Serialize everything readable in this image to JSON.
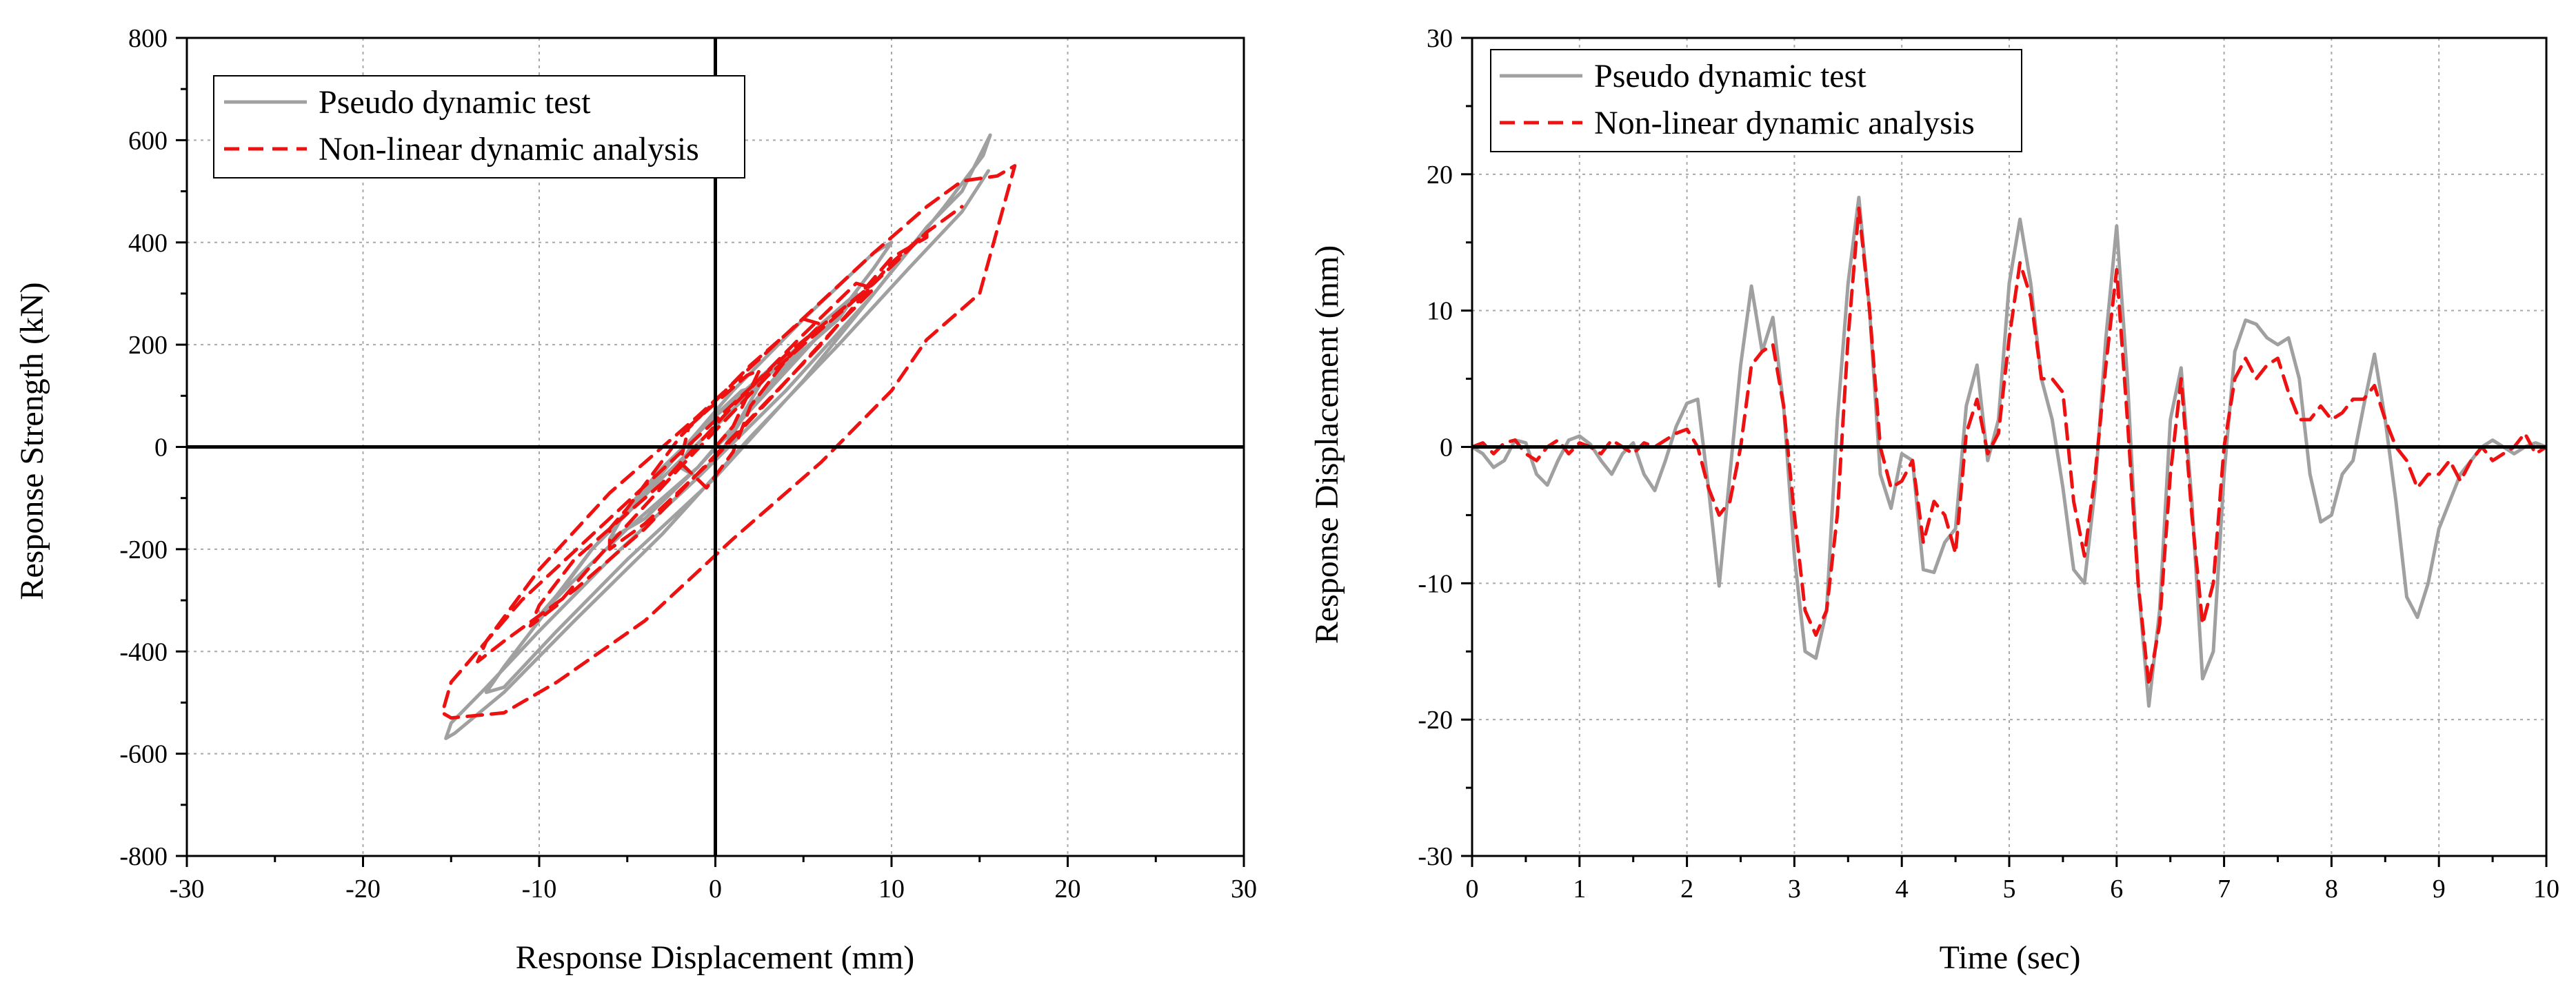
{
  "colors": {
    "test_series": "#a0a0a0",
    "analysis_series": "#ee1111",
    "axis": "#000000",
    "grid": "#a8a8a8"
  },
  "chart_data": [
    {
      "id": "hysteresis",
      "type": "line",
      "title": "",
      "xlabel": "Response Displacement (mm)",
      "ylabel": "Response Strength (kN)",
      "xlim": [
        -30,
        30
      ],
      "ylim": [
        -800,
        800
      ],
      "xticks": [
        -30,
        -20,
        -10,
        0,
        10,
        20,
        30
      ],
      "yticks": [
        -800,
        -600,
        -400,
        -200,
        0,
        200,
        400,
        600,
        800
      ],
      "xtick_labels": [
        "-30",
        "-20",
        "-10",
        "0",
        "10",
        "20",
        "30"
      ],
      "ytick_labels": [
        "-800",
        "-600",
        "-400",
        "-200",
        "0",
        "200",
        "400",
        "600",
        "800"
      ],
      "grid": true,
      "zero_lines": true,
      "legend_position": "top-left",
      "series": [
        {
          "name": "Pseudo dynamic test",
          "style": "solid",
          "color": "#a0a0a0",
          "x": [
            0,
            1,
            2.5,
            1.5,
            -1,
            -2,
            -1,
            0.5,
            2,
            4,
            5,
            3,
            0,
            -3,
            -5,
            -6,
            -4,
            -1,
            2,
            5,
            7,
            8,
            6,
            3,
            0,
            -3,
            -7,
            -9,
            -10,
            -8,
            -5,
            -1,
            3,
            7,
            9,
            10,
            9,
            5,
            1,
            -3,
            -7,
            -10,
            -12,
            -13,
            -12,
            -9,
            -5,
            0,
            5,
            9,
            12,
            14,
            15.6,
            15.2,
            13,
            9,
            4,
            -1,
            -6,
            -10,
            -13,
            -15,
            -15.3,
            -14.8,
            -12,
            -8,
            -3,
            2,
            7,
            11,
            14,
            15.5
          ],
          "y": [
            0,
            30,
            120,
            110,
            30,
            -40,
            -60,
            0,
            80,
            160,
            200,
            150,
            60,
            -40,
            -120,
            -180,
            -140,
            -40,
            80,
            190,
            250,
            300,
            240,
            140,
            40,
            -60,
            -200,
            -290,
            -330,
            -260,
            -160,
            -40,
            110,
            260,
            350,
            400,
            380,
            250,
            110,
            -50,
            -200,
            -340,
            -430,
            -480,
            -470,
            -360,
            -220,
            -60,
            130,
            300,
            430,
            500,
            610,
            570,
            470,
            300,
            110,
            -60,
            -220,
            -360,
            -470,
            -540,
            -570,
            -560,
            -480,
            -340,
            -170,
            20,
            200,
            350,
            460,
            540
          ]
        },
        {
          "name": "Non-linear dynamic analysis",
          "style": "dashed",
          "color": "#ee1111",
          "x": [
            0,
            1,
            2.5,
            1.8,
            -1.5,
            -2,
            -0.5,
            1,
            2,
            4,
            6,
            5,
            2,
            -2,
            -5,
            -6,
            -6,
            -4,
            0,
            3,
            7,
            9,
            8,
            5,
            1,
            -3,
            -8,
            -10,
            -10.5,
            -9,
            -6,
            -2,
            3,
            8,
            10,
            12,
            12,
            10,
            6,
            1,
            -4,
            -8,
            -12,
            -13.5,
            -13,
            -10,
            -6,
            -1,
            4,
            9,
            12,
            14,
            16,
            17,
            15,
            12,
            10,
            6,
            1,
            -4,
            -9,
            -12,
            -15,
            -15.5,
            -15,
            -11,
            -6,
            -1,
            4,
            9,
            12,
            14
          ],
          "y": [
            0,
            40,
            150,
            140,
            40,
            -30,
            -80,
            -10,
            80,
            170,
            240,
            250,
            160,
            20,
            -120,
            -160,
            -200,
            -150,
            -20,
            90,
            240,
            310,
            320,
            220,
            80,
            -70,
            -220,
            -310,
            -350,
            -310,
            -190,
            -40,
            140,
            290,
            370,
            410,
            420,
            360,
            200,
            20,
            -160,
            -280,
            -380,
            -420,
            -380,
            -240,
            -90,
            60,
            220,
            380,
            470,
            520,
            530,
            550,
            300,
            210,
            110,
            -30,
            -180,
            -340,
            -460,
            -520,
            -530,
            -520,
            -460,
            -300,
            -140,
            20,
            180,
            320,
            420,
            470
          ]
        }
      ]
    },
    {
      "id": "time-history",
      "type": "line",
      "title": "",
      "xlabel": "Time (sec)",
      "ylabel": "Response Displacement (mm)",
      "xlim": [
        0,
        10
      ],
      "ylim": [
        -30,
        30
      ],
      "xticks": [
        0,
        1,
        2,
        3,
        4,
        5,
        6,
        7,
        8,
        9,
        10
      ],
      "yticks": [
        -30,
        -20,
        -10,
        0,
        10,
        20,
        30
      ],
      "xtick_labels": [
        "0",
        "1",
        "2",
        "3",
        "4",
        "5",
        "6",
        "7",
        "8",
        "9",
        "10"
      ],
      "ytick_labels": [
        "-30",
        "-20",
        "-10",
        "0",
        "10",
        "20",
        "30"
      ],
      "grid": true,
      "zero_lines": true,
      "legend_position": "top-left",
      "series": [
        {
          "name": "Pseudo dynamic test",
          "style": "solid",
          "color": "#a0a0a0",
          "x": [
            0,
            0.1,
            0.2,
            0.3,
            0.4,
            0.5,
            0.6,
            0.7,
            0.8,
            0.9,
            1.0,
            1.1,
            1.2,
            1.3,
            1.4,
            1.5,
            1.6,
            1.7,
            1.8,
            1.9,
            2.0,
            2.1,
            2.2,
            2.3,
            2.4,
            2.5,
            2.6,
            2.7,
            2.8,
            2.9,
            3.0,
            3.1,
            3.2,
            3.3,
            3.4,
            3.5,
            3.6,
            3.7,
            3.8,
            3.9,
            4.0,
            4.1,
            4.2,
            4.3,
            4.4,
            4.5,
            4.6,
            4.7,
            4.8,
            4.9,
            5.0,
            5.1,
            5.2,
            5.3,
            5.4,
            5.5,
            5.6,
            5.7,
            5.8,
            5.9,
            6.0,
            6.1,
            6.2,
            6.3,
            6.4,
            6.5,
            6.6,
            6.7,
            6.8,
            6.9,
            7.0,
            7.1,
            7.2,
            7.3,
            7.4,
            7.5,
            7.6,
            7.7,
            7.8,
            7.9,
            8.0,
            8.1,
            8.2,
            8.3,
            8.4,
            8.5,
            8.6,
            8.7,
            8.8,
            8.9,
            9.0,
            9.1,
            9.2,
            9.3,
            9.4,
            9.5,
            9.6,
            9.7,
            9.8,
            9.9,
            10.0
          ],
          "y": [
            0,
            -0.5,
            -1.5,
            -1,
            0.5,
            0.3,
            -2,
            -2.8,
            -1,
            0.5,
            0.8,
            0.2,
            -1,
            -2,
            -0.5,
            0.3,
            -2,
            -3.2,
            -1,
            1.5,
            3.2,
            3.5,
            -3,
            -10.2,
            -2,
            6,
            11.8,
            7,
            9.5,
            3,
            -8,
            -15,
            -15.5,
            -12,
            2,
            12,
            18.3,
            10,
            -2,
            -4.5,
            -0.5,
            -1,
            -9,
            -9.2,
            -7,
            -6,
            3,
            6,
            -1,
            2,
            12,
            16.7,
            12,
            5,
            2,
            -3,
            -9,
            -10,
            -3,
            8,
            16.2,
            5,
            -10,
            -19,
            -12,
            2,
            5.8,
            -4,
            -17,
            -15,
            -2,
            7,
            9.3,
            9,
            8,
            7.5,
            8,
            5,
            -2,
            -5.5,
            -5,
            -2,
            -1,
            3,
            6.8,
            2,
            -4,
            -11,
            -12.5,
            -10,
            -6,
            -4,
            -2,
            -1,
            0,
            0.5,
            0,
            -0.5,
            0,
            0.3,
            0
          ]
        },
        {
          "name": "Non-linear dynamic analysis",
          "style": "dashed",
          "color": "#ee1111",
          "x": [
            0,
            0.1,
            0.2,
            0.3,
            0.4,
            0.5,
            0.6,
            0.7,
            0.8,
            0.9,
            1.0,
            1.1,
            1.2,
            1.3,
            1.4,
            1.5,
            1.6,
            1.7,
            1.8,
            1.9,
            2.0,
            2.1,
            2.2,
            2.3,
            2.4,
            2.5,
            2.6,
            2.7,
            2.8,
            2.9,
            3.0,
            3.1,
            3.2,
            3.3,
            3.4,
            3.5,
            3.6,
            3.7,
            3.8,
            3.9,
            4.0,
            4.1,
            4.2,
            4.3,
            4.4,
            4.5,
            4.6,
            4.7,
            4.8,
            4.9,
            5.0,
            5.1,
            5.2,
            5.3,
            5.4,
            5.5,
            5.6,
            5.7,
            5.8,
            5.9,
            6.0,
            6.1,
            6.2,
            6.3,
            6.4,
            6.5,
            6.6,
            6.7,
            6.8,
            6.9,
            7.0,
            7.1,
            7.2,
            7.3,
            7.4,
            7.5,
            7.6,
            7.7,
            7.8,
            7.9,
            8.0,
            8.1,
            8.2,
            8.3,
            8.4,
            8.5,
            8.6,
            8.7,
            8.8,
            8.9,
            9.0,
            9.1,
            9.2,
            9.3,
            9.4,
            9.5,
            9.6,
            9.7,
            9.8,
            9.9,
            10.0
          ],
          "y": [
            0,
            0.3,
            -0.5,
            0.3,
            0.5,
            -0.5,
            -1,
            0,
            0.5,
            -0.5,
            0.3,
            0,
            -0.5,
            0.5,
            0,
            -0.5,
            0.3,
            0,
            0.5,
            1,
            1.3,
            0,
            -3,
            -5,
            -4,
            0,
            6,
            7,
            7.5,
            3,
            -5,
            -12,
            -13.8,
            -12,
            -5,
            8,
            17.5,
            10,
            0,
            -3,
            -2.5,
            -1,
            -7,
            -4,
            -5,
            -7.8,
            1,
            3.5,
            -0.5,
            1,
            8,
            13.5,
            11,
            5,
            5,
            4,
            -4,
            -8,
            -2,
            6,
            13,
            2,
            -10,
            -17.5,
            -13,
            -2,
            5,
            -5,
            -13,
            -10,
            0,
            5,
            6.5,
            5,
            6,
            6.5,
            4,
            2,
            2,
            3,
            2,
            2.5,
            3.5,
            3.5,
            4.5,
            2,
            0,
            -1,
            -3,
            -2,
            -2,
            -1,
            -2.5,
            -1,
            0,
            -1,
            -0.5,
            0,
            1,
            -0.5,
            0
          ]
        }
      ]
    }
  ]
}
